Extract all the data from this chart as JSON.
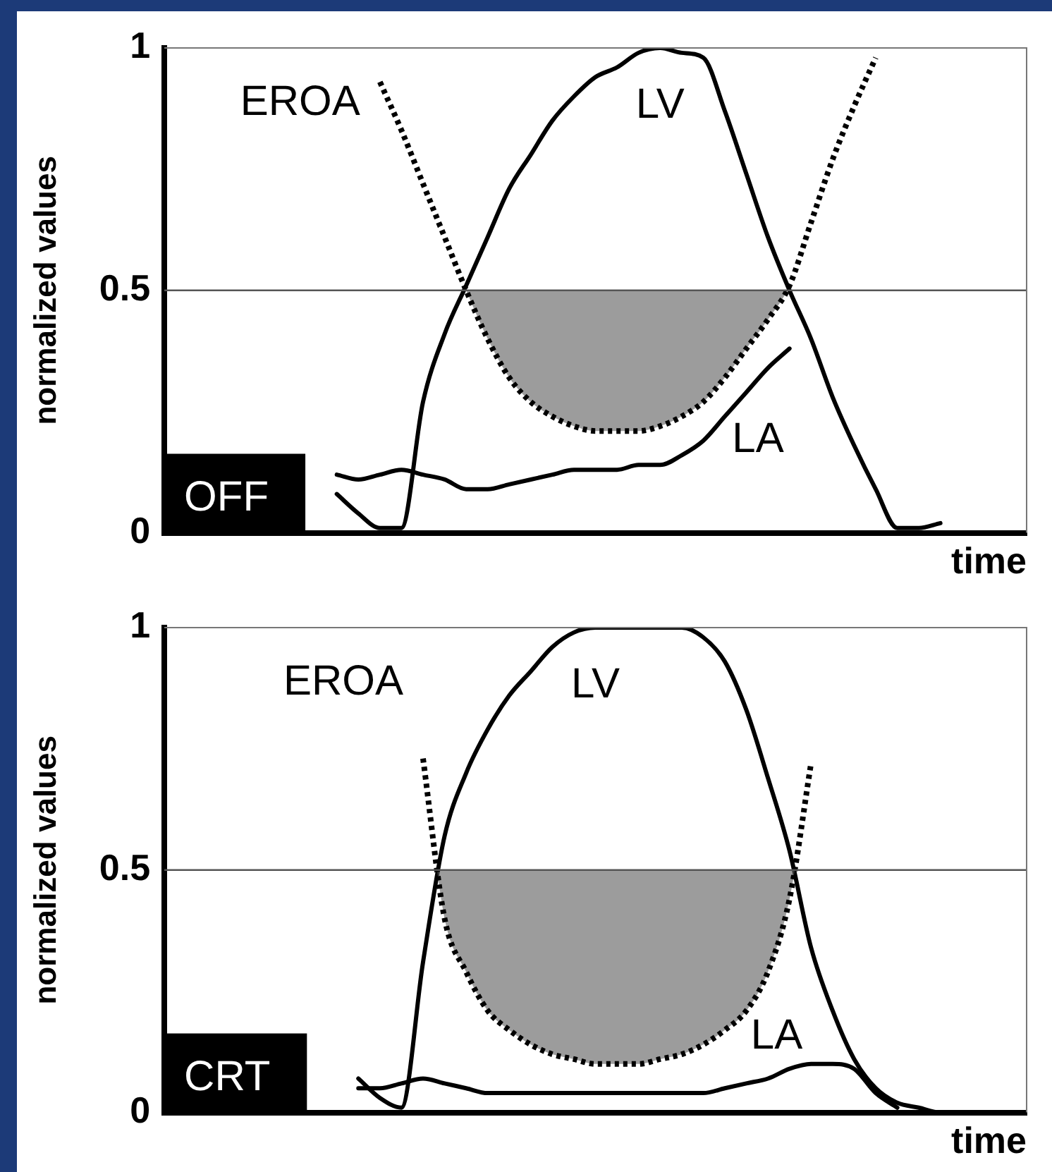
{
  "chart_data": [
    {
      "type": "line",
      "xlabel": "time",
      "ylabel": "normalized values",
      "annotations": [
        "OFF"
      ],
      "marker": "none",
      "ylim": [
        0,
        1
      ],
      "yticks": [
        0,
        0.5,
        1
      ],
      "categories": [
        null,
        null,
        null,
        null,
        null,
        null,
        null,
        null,
        null,
        null,
        null,
        null,
        null,
        null,
        null,
        null,
        null,
        null,
        null,
        null,
        null,
        null,
        null,
        null,
        null,
        null,
        null,
        null,
        null,
        null,
        null,
        null,
        null,
        null,
        null,
        null,
        null,
        null,
        null,
        null,
        null
      ],
      "ref_lines": [
        {
          "axis": "y",
          "value": 0.5,
          "color": "#555555"
        }
      ],
      "series": [
        {
          "name": "EROA",
          "color": "#000000",
          "line_style": "dotted",
          "values": [
            null,
            null,
            null,
            null,
            null,
            null,
            null,
            null,
            null,
            null,
            0.93,
            0.83,
            0.72,
            0.61,
            0.5,
            0.4,
            0.32,
            0.27,
            0.24,
            0.22,
            0.21,
            0.21,
            0.21,
            0.22,
            0.24,
            0.27,
            0.32,
            0.38,
            0.44,
            0.51,
            0.64,
            0.77,
            0.88,
            0.98,
            null,
            null,
            null,
            null,
            null,
            null,
            null
          ]
        },
        {
          "name": "LV",
          "color": "#000000",
          "line_style": "solid",
          "values": [
            null,
            null,
            null,
            null,
            null,
            null,
            null,
            null,
            0.08,
            0.04,
            0.01,
            0.01,
            0.27,
            0.41,
            0.51,
            0.61,
            0.71,
            0.78,
            0.85,
            0.9,
            0.94,
            0.96,
            0.99,
            1.0,
            0.99,
            0.98,
            0.87,
            0.74,
            0.61,
            0.5,
            0.4,
            0.28,
            0.18,
            0.09,
            0.01,
            0.01,
            0.02,
            null,
            null,
            null,
            null
          ]
        },
        {
          "name": "LA",
          "color": "#000000",
          "line_style": "solid",
          "values": [
            null,
            null,
            null,
            null,
            null,
            null,
            null,
            null,
            0.12,
            0.11,
            0.12,
            0.13,
            0.12,
            0.11,
            0.09,
            0.09,
            0.1,
            0.11,
            0.12,
            0.13,
            0.13,
            0.13,
            0.14,
            0.14,
            0.16,
            0.19,
            0.24,
            0.29,
            0.34,
            0.38,
            null,
            null,
            null,
            null,
            null,
            null,
            null,
            null,
            null,
            null,
            null
          ]
        }
      ]
    },
    {
      "type": "line",
      "xlabel": "time",
      "ylabel": "normalized values",
      "annotations": [
        "CRT"
      ],
      "marker": "none",
      "ylim": [
        0,
        1
      ],
      "yticks": [
        0,
        0.5,
        1
      ],
      "categories": [
        null,
        null,
        null,
        null,
        null,
        null,
        null,
        null,
        null,
        null,
        null,
        null,
        null,
        null,
        null,
        null,
        null,
        null,
        null,
        null,
        null,
        null,
        null,
        null,
        null,
        null,
        null,
        null,
        null,
        null,
        null,
        null,
        null,
        null,
        null,
        null,
        null,
        null,
        null,
        null,
        null
      ],
      "ref_lines": [
        {
          "axis": "y",
          "value": 0.5,
          "color": "#555555"
        }
      ],
      "series": [
        {
          "name": "EROA",
          "color": "#000000",
          "line_style": "dotted",
          "values": [
            null,
            null,
            null,
            null,
            null,
            null,
            null,
            null,
            null,
            null,
            null,
            null,
            0.73,
            0.4,
            0.29,
            0.21,
            0.17,
            0.14,
            0.12,
            0.11,
            0.1,
            0.1,
            0.1,
            0.11,
            0.12,
            0.14,
            0.17,
            0.21,
            0.29,
            0.44,
            0.72,
            null,
            null,
            null,
            null,
            null,
            null,
            null,
            null,
            null,
            null
          ]
        },
        {
          "name": "LV",
          "color": "#000000",
          "line_style": "solid",
          "values": [
            null,
            null,
            null,
            null,
            null,
            null,
            null,
            null,
            null,
            0.07,
            0.03,
            0.01,
            0.31,
            0.57,
            0.7,
            0.79,
            0.86,
            0.91,
            0.96,
            0.99,
            1.0,
            1.0,
            1.0,
            1.0,
            1.0,
            0.98,
            0.93,
            0.83,
            0.69,
            0.54,
            0.34,
            0.21,
            0.11,
            0.05,
            0.02,
            0.01,
            0,
            0,
            null,
            null,
            null
          ]
        },
        {
          "name": "LA",
          "color": "#000000",
          "line_style": "solid",
          "values": [
            null,
            null,
            null,
            null,
            null,
            null,
            null,
            null,
            null,
            0.05,
            0.05,
            0.06,
            0.07,
            0.06,
            0.05,
            0.04,
            0.04,
            0.04,
            0.04,
            0.04,
            0.04,
            0.04,
            0.04,
            0.04,
            0.04,
            0.04,
            0.05,
            0.06,
            0.07,
            0.09,
            0.1,
            0.1,
            0.09,
            0.04,
            0.01,
            null,
            null,
            null,
            null,
            null,
            null
          ]
        }
      ]
    }
  ]
}
